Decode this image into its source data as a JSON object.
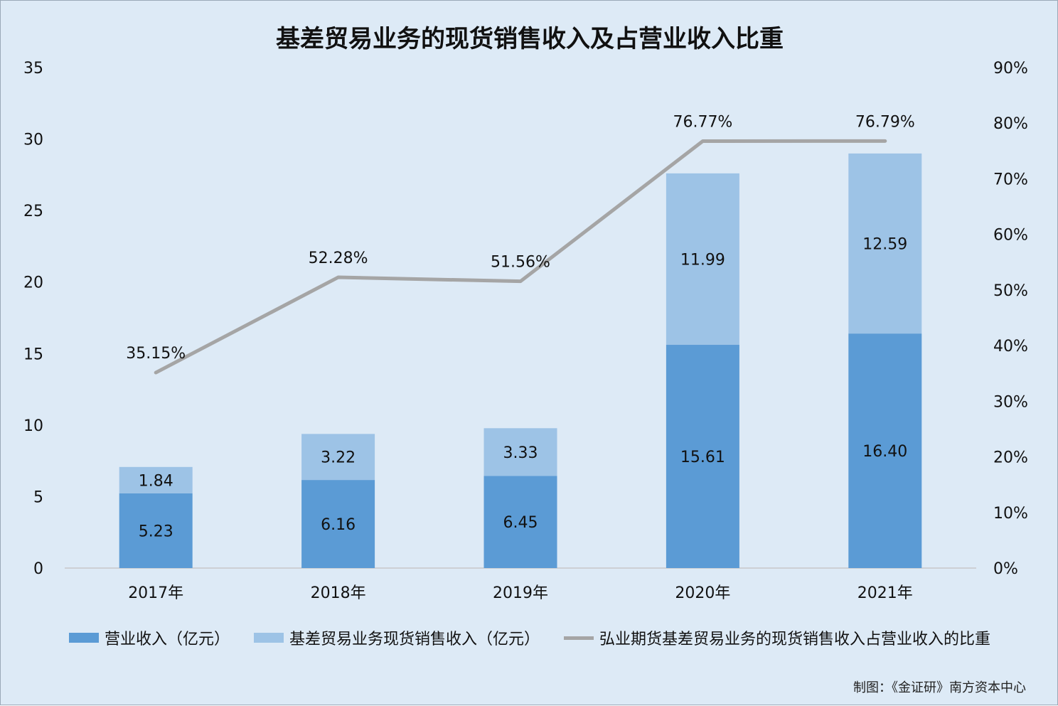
{
  "chart_data": {
    "type": "bar",
    "title": "基差贸易业务的现货销售收入及占营业收入比重",
    "categories": [
      "2017年",
      "2018年",
      "2019年",
      "2020年",
      "2021年"
    ],
    "stacked": true,
    "series": [
      {
        "name": "营业收入（亿元）",
        "kind": "bar",
        "axis": "left",
        "color": "#5b9bd5",
        "values": [
          5.23,
          6.16,
          6.45,
          15.61,
          16.4
        ],
        "labels": [
          "5.23",
          "6.16",
          "6.45",
          "15.61",
          "16.40"
        ]
      },
      {
        "name": "基差贸易业务现货销售收入（亿元）",
        "kind": "bar",
        "axis": "left",
        "color": "#9dc3e6",
        "values": [
          1.84,
          3.22,
          3.33,
          11.99,
          12.59
        ],
        "labels": [
          "1.84",
          "3.22",
          "3.33",
          "11.99",
          "12.59"
        ]
      },
      {
        "name": "弘业期货基差贸易业务的现货销售收入占营业收入的比重",
        "kind": "line",
        "axis": "right",
        "color": "#a5a5a5",
        "values": [
          35.15,
          52.28,
          51.56,
          76.77,
          76.79
        ],
        "labels": [
          "35.15%",
          "52.28%",
          "51.56%",
          "76.77%",
          "76.79%"
        ]
      }
    ],
    "y_left": {
      "min": 0,
      "max": 35,
      "ticks": [
        "0",
        "5",
        "10",
        "15",
        "20",
        "25",
        "30",
        "35"
      ]
    },
    "y_right": {
      "min": 0,
      "max": 90,
      "ticks": [
        "0%",
        "10%",
        "20%",
        "30%",
        "40%",
        "50%",
        "60%",
        "70%",
        "80%",
        "90%"
      ]
    },
    "grid": false,
    "legend": "bottom"
  },
  "source": "制图：《金证研》南方资本中心"
}
